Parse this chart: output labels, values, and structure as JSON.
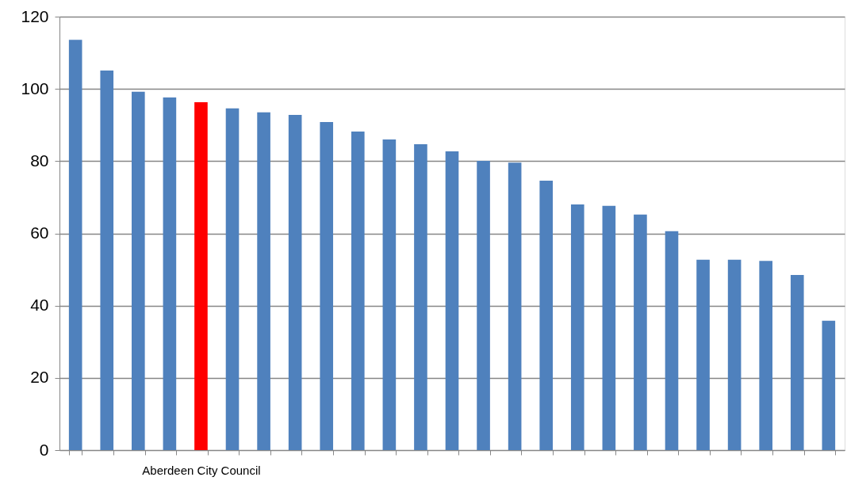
{
  "chart_data": {
    "type": "bar",
    "categories": [
      null,
      null,
      null,
      null,
      "Aberdeen City Council",
      null,
      null,
      null,
      null,
      null,
      null,
      null,
      null,
      null,
      null,
      null,
      null,
      null,
      null,
      null,
      null,
      null,
      null,
      null,
      null
    ],
    "values": [
      113.6,
      105.1,
      99.2,
      97.6,
      96.3,
      94.6,
      93.5,
      92.8,
      90.8,
      88.2,
      86.0,
      84.7,
      82.7,
      80.1,
      79.6,
      74.6,
      68.0,
      67.6,
      65.2,
      60.6,
      52.7,
      52.7,
      52.4,
      48.5,
      35.8
    ],
    "colors": [
      "#4f81bd",
      "#4f81bd",
      "#4f81bd",
      "#4f81bd",
      "#ff0000",
      "#4f81bd",
      "#4f81bd",
      "#4f81bd",
      "#4f81bd",
      "#4f81bd",
      "#4f81bd",
      "#4f81bd",
      "#4f81bd",
      "#4f81bd",
      "#4f81bd",
      "#4f81bd",
      "#4f81bd",
      "#4f81bd",
      "#4f81bd",
      "#4f81bd",
      "#4f81bd",
      "#4f81bd",
      "#4f81bd",
      "#4f81bd",
      "#4f81bd"
    ],
    "ylim": [
      0,
      120
    ],
    "yticks": [
      0,
      20,
      40,
      60,
      80,
      100,
      120
    ],
    "grid": "y"
  }
}
